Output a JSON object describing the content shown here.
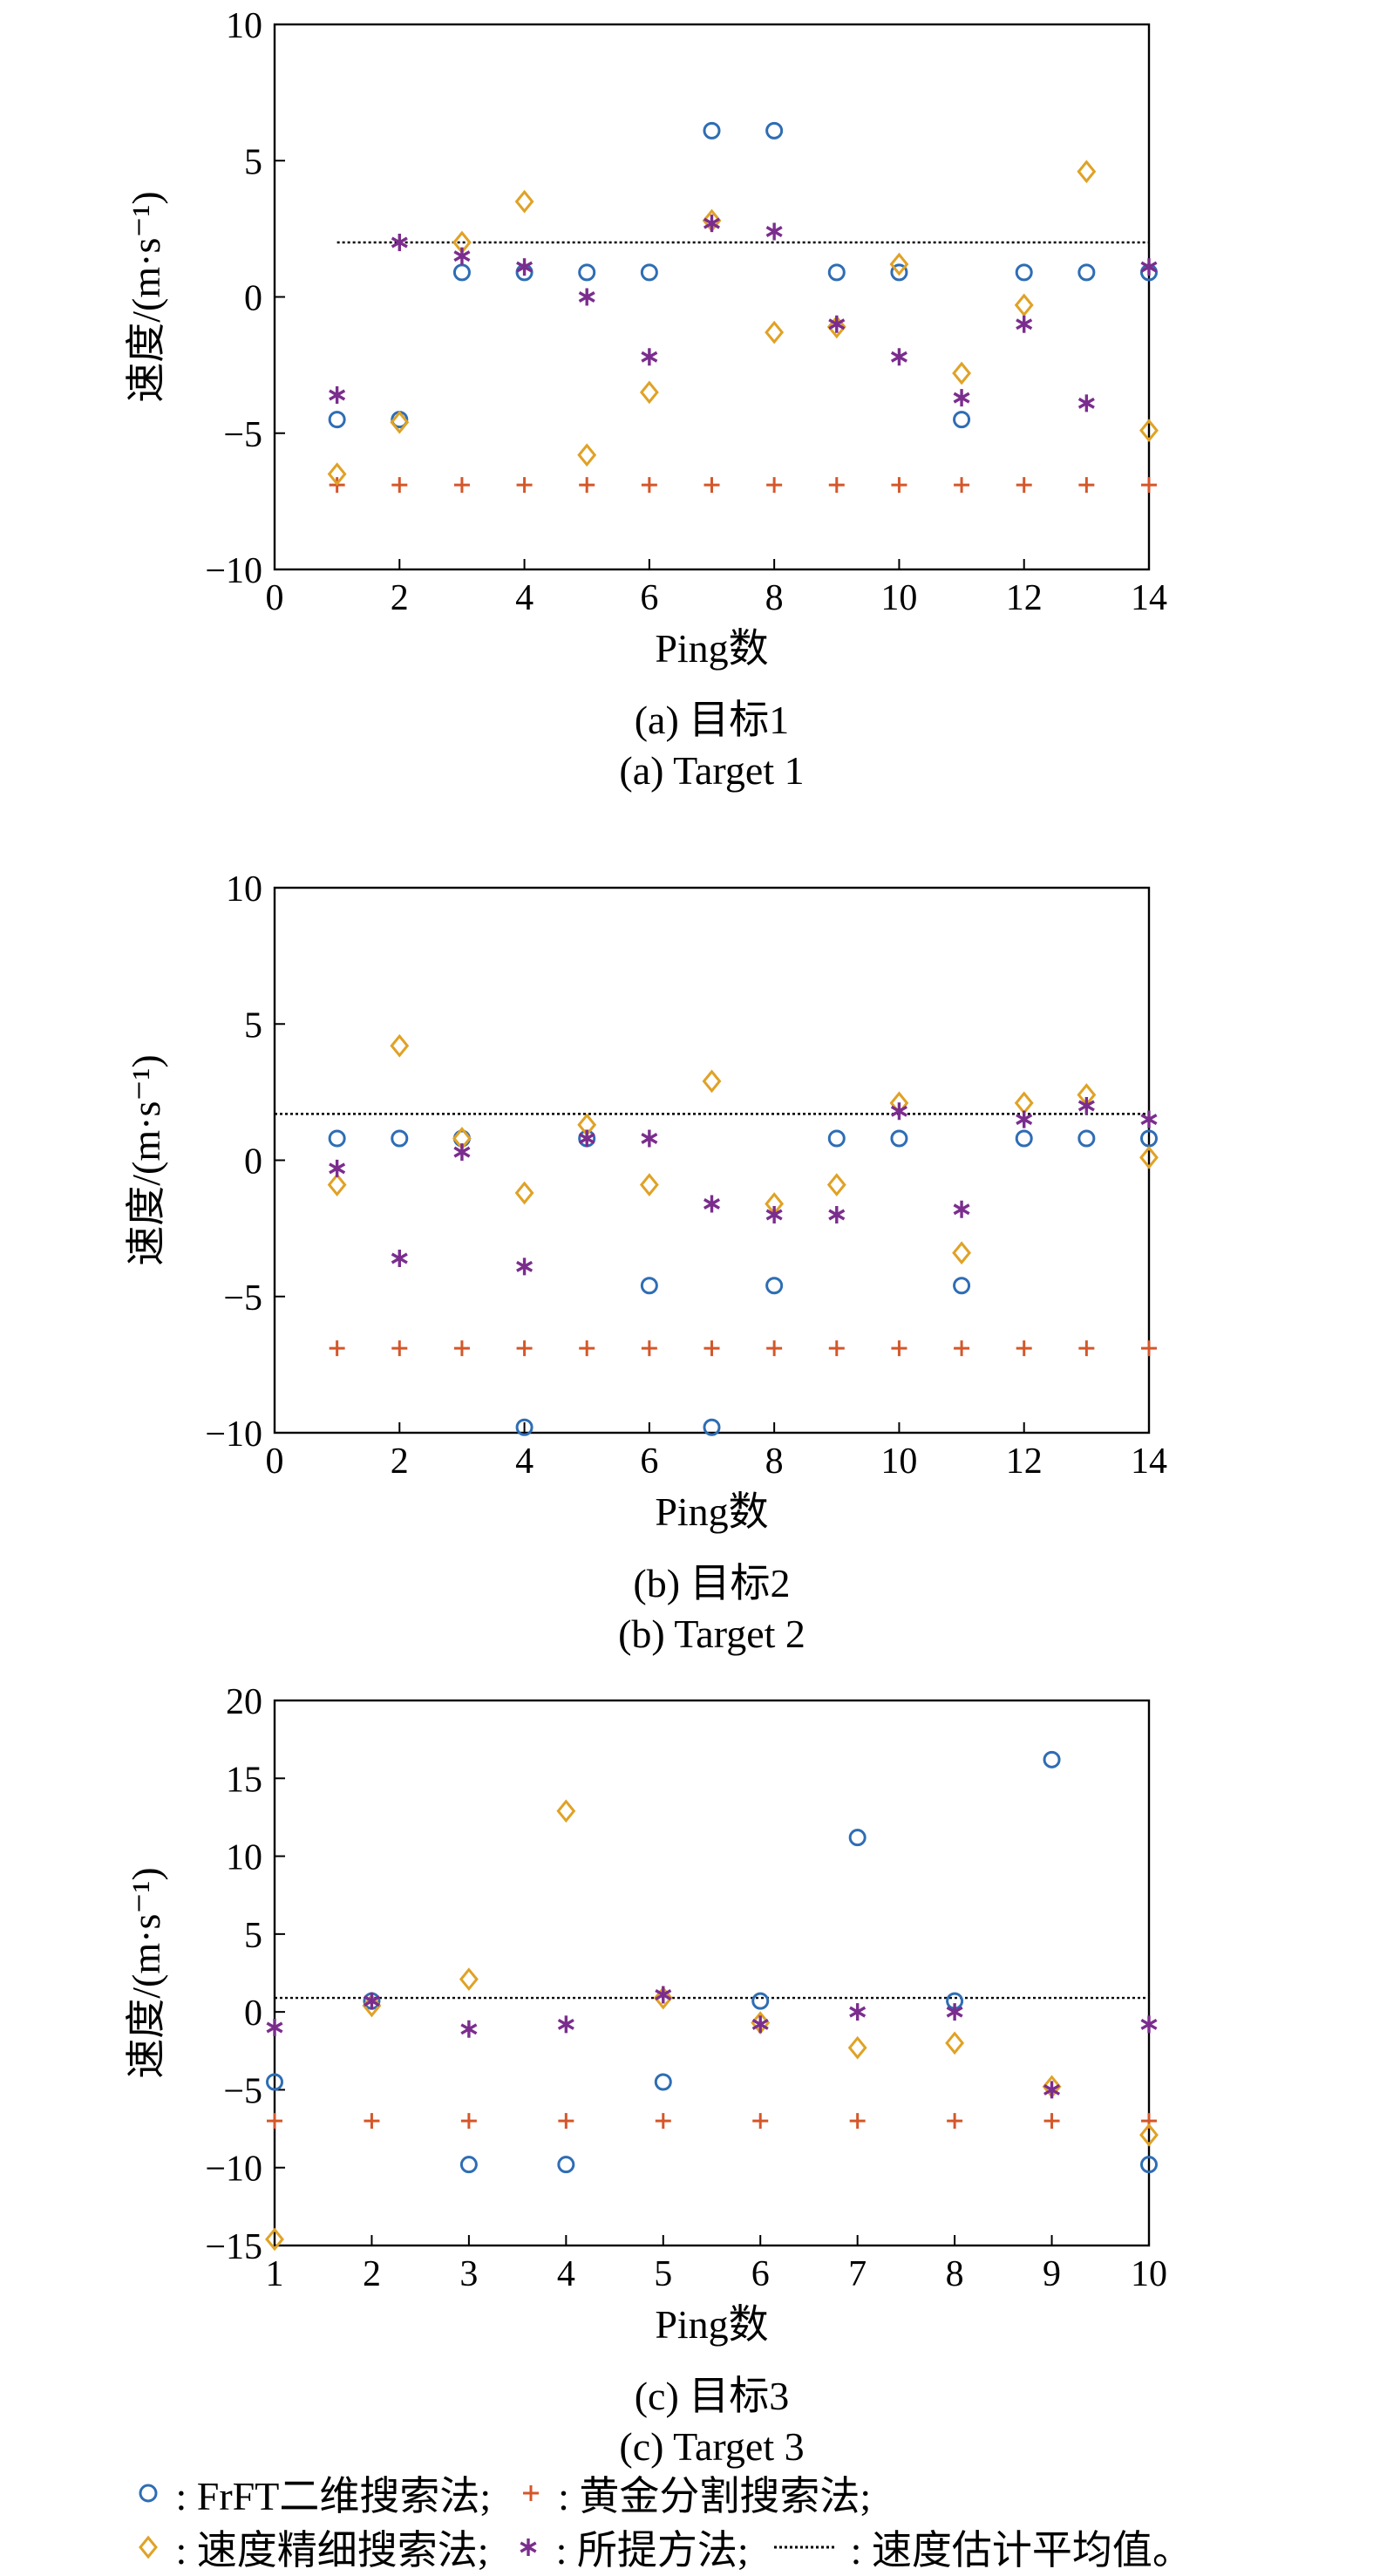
{
  "chart_data": [
    {
      "type": "scatter",
      "caption_cn": "(a) 目标1",
      "caption_en": "(a) Target 1",
      "xlabel": "Ping数",
      "ylabel": "速度/(m·s⁻¹)",
      "xlim": [
        0,
        14
      ],
      "ylim": [
        -10,
        10
      ],
      "xticks": [
        0,
        2,
        4,
        6,
        8,
        10,
        12,
        14
      ],
      "yticks": [
        -10,
        -5,
        0,
        5,
        10
      ],
      "mean_line": {
        "value": 2.0,
        "x_range": [
          1,
          14
        ]
      },
      "series": [
        {
          "id": "frft",
          "marker": "circle",
          "color": "#2E6DB4",
          "x": [
            1,
            2,
            3,
            4,
            5,
            6,
            7,
            8,
            9,
            10,
            11,
            12,
            13,
            14
          ],
          "y": [
            -4.5,
            -4.5,
            0.9,
            0.9,
            0.9,
            0.9,
            6.1,
            6.1,
            0.9,
            0.9,
            -4.5,
            0.9,
            0.9,
            0.9
          ]
        },
        {
          "id": "golden",
          "marker": "plus",
          "color": "#D4572A",
          "x": [
            1,
            2,
            3,
            4,
            5,
            6,
            7,
            8,
            9,
            10,
            11,
            12,
            13,
            14
          ],
          "y": [
            -6.9,
            -6.9,
            -6.9,
            -6.9,
            -6.9,
            -6.9,
            -6.9,
            -6.9,
            -6.9,
            -6.9,
            -6.9,
            -6.9,
            -6.9,
            -6.9
          ]
        },
        {
          "id": "fine",
          "marker": "diamond",
          "color": "#E0A226",
          "x": [
            1,
            2,
            3,
            4,
            5,
            6,
            7,
            8,
            9,
            10,
            11,
            12,
            13,
            14
          ],
          "y": [
            -6.5,
            -4.6,
            2.0,
            3.5,
            -5.8,
            -3.5,
            2.8,
            -1.3,
            -1.1,
            1.2,
            -2.8,
            -0.3,
            4.6,
            -4.9
          ]
        },
        {
          "id": "proposed",
          "marker": "asterisk",
          "color": "#7B2D8E",
          "x": [
            1,
            2,
            3,
            4,
            5,
            6,
            7,
            8,
            9,
            10,
            11,
            12,
            13,
            14
          ],
          "y": [
            -3.6,
            2.0,
            1.5,
            1.1,
            0.0,
            -2.2,
            2.7,
            2.4,
            -1.0,
            -2.2,
            -3.7,
            -1.0,
            -3.9,
            1.1
          ]
        }
      ]
    },
    {
      "type": "scatter",
      "caption_cn": "(b) 目标2",
      "caption_en": "(b) Target 2",
      "xlabel": "Ping数",
      "ylabel": "速度/(m·s⁻¹)",
      "xlim": [
        0,
        14
      ],
      "ylim": [
        -10,
        10
      ],
      "xticks": [
        0,
        2,
        4,
        6,
        8,
        10,
        12,
        14
      ],
      "yticks": [
        -10,
        -5,
        0,
        5,
        10
      ],
      "mean_line": {
        "value": 1.7,
        "x_range": [
          0,
          14
        ]
      },
      "series": [
        {
          "id": "frft",
          "marker": "circle",
          "color": "#2E6DB4",
          "x": [
            1,
            2,
            3,
            4,
            5,
            6,
            7,
            8,
            9,
            10,
            11,
            12,
            13,
            14
          ],
          "y": [
            0.8,
            0.8,
            0.8,
            -9.8,
            0.8,
            -4.6,
            -9.8,
            -4.6,
            0.8,
            0.8,
            -4.6,
            0.8,
            0.8,
            0.8
          ]
        },
        {
          "id": "golden",
          "marker": "plus",
          "color": "#D4572A",
          "x": [
            1,
            2,
            3,
            4,
            5,
            6,
            7,
            8,
            9,
            10,
            11,
            12,
            13,
            14
          ],
          "y": [
            -6.9,
            -6.9,
            -6.9,
            -6.9,
            -6.9,
            -6.9,
            -6.9,
            -6.9,
            -6.9,
            -6.9,
            -6.9,
            -6.9,
            -6.9,
            -6.9
          ]
        },
        {
          "id": "fine",
          "marker": "diamond",
          "color": "#E0A226",
          "x": [
            1,
            2,
            3,
            4,
            5,
            6,
            7,
            8,
            9,
            10,
            11,
            12,
            13,
            14
          ],
          "y": [
            -0.9,
            4.2,
            0.8,
            -1.2,
            1.3,
            -0.9,
            2.9,
            -1.6,
            -0.9,
            2.1,
            -3.4,
            2.1,
            2.4,
            0.1
          ]
        },
        {
          "id": "proposed",
          "marker": "asterisk",
          "color": "#7B2D8E",
          "x": [
            1,
            2,
            3,
            4,
            5,
            6,
            7,
            8,
            9,
            10,
            11,
            12,
            13,
            14
          ],
          "y": [
            -0.3,
            -3.6,
            0.3,
            -3.9,
            0.8,
            0.8,
            -1.6,
            -2.0,
            -2.0,
            1.8,
            -1.8,
            1.5,
            2.0,
            1.5
          ]
        }
      ]
    },
    {
      "type": "scatter",
      "caption_cn": "(c) 目标3",
      "caption_en": "(c) Target 3",
      "xlabel": "Ping数",
      "ylabel": "速度/(m·s⁻¹)",
      "xlim": [
        1,
        10
      ],
      "ylim": [
        -15,
        20
      ],
      "xticks": [
        1,
        2,
        3,
        4,
        5,
        6,
        7,
        8,
        9,
        10
      ],
      "yticks": [
        -15,
        -10,
        -5,
        0,
        5,
        10,
        15,
        20
      ],
      "mean_line": {
        "value": 0.9,
        "x_range": [
          1,
          10
        ]
      },
      "series": [
        {
          "id": "frft",
          "marker": "circle",
          "color": "#2E6DB4",
          "x": [
            1,
            2,
            3,
            4,
            5,
            6,
            7,
            8,
            9,
            10
          ],
          "y": [
            -4.5,
            0.7,
            -9.8,
            -9.8,
            -4.5,
            0.7,
            11.2,
            0.7,
            16.2,
            -9.8
          ]
        },
        {
          "id": "golden",
          "marker": "plus",
          "color": "#D4572A",
          "x": [
            1,
            2,
            3,
            4,
            5,
            6,
            7,
            8,
            9,
            10
          ],
          "y": [
            -7.0,
            -7.0,
            -7.0,
            -7.0,
            -7.0,
            -7.0,
            -7.0,
            -7.0,
            -7.0,
            -7.0
          ]
        },
        {
          "id": "fine",
          "marker": "diamond",
          "color": "#E0A226",
          "x": [
            1,
            2,
            3,
            4,
            5,
            6,
            7,
            8,
            9,
            10
          ],
          "y": [
            -14.6,
            0.4,
            2.1,
            12.9,
            0.9,
            -0.7,
            -2.3,
            -2.0,
            -4.8,
            -7.9
          ]
        },
        {
          "id": "proposed",
          "marker": "asterisk",
          "color": "#7B2D8E",
          "x": [
            1,
            2,
            3,
            4,
            5,
            6,
            7,
            8,
            9,
            10
          ],
          "y": [
            -1.0,
            0.7,
            -1.1,
            -0.8,
            1.1,
            -0.8,
            0.0,
            0.0,
            -5.0,
            -0.8
          ]
        }
      ]
    }
  ],
  "legend": {
    "frft": ": FrFT二维搜索法;",
    "golden": ": 黄金分割搜索法;",
    "fine": ": 速度精细搜索法;",
    "proposed": ": 所提方法;",
    "mean": ": 速度估计平均值。"
  }
}
